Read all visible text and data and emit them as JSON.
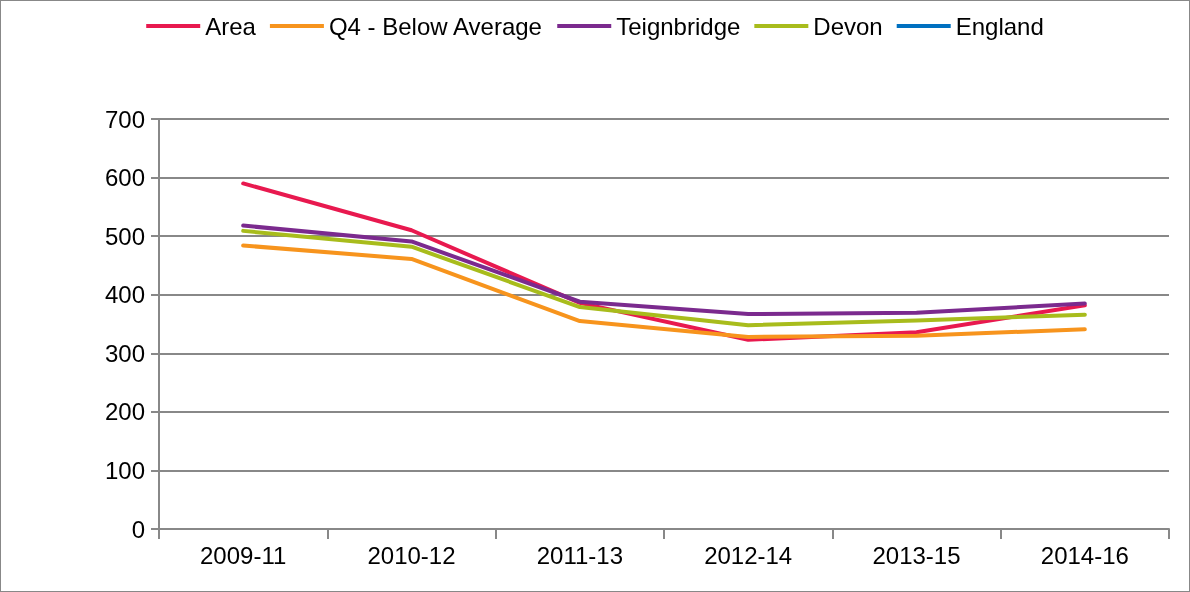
{
  "chart_data": {
    "type": "line",
    "categories": [
      "2009-11",
      "2010-12",
      "2011-13",
      "2012-14",
      "2013-15",
      "2014-16"
    ],
    "series": [
      {
        "name": "Area",
        "color": "#e8194f",
        "values": [
          590,
          510,
          386,
          323,
          336,
          382
        ]
      },
      {
        "name": "Q4 - Below Average",
        "color": "#f7941d",
        "values": [
          484,
          461,
          355,
          328,
          330,
          341
        ]
      },
      {
        "name": "Teignbridge",
        "color": "#7b2a8e",
        "values": [
          518,
          491,
          388,
          367,
          369,
          385
        ]
      },
      {
        "name": "Devon",
        "color": "#a8bc1c",
        "values": [
          509,
          482,
          379,
          348,
          356,
          366
        ]
      },
      {
        "name": "England",
        "color": "#0070c0",
        "values": [
          null,
          null,
          null,
          null,
          null,
          null
        ]
      }
    ],
    "ylim": [
      0,
      700
    ],
    "yticks": [
      0,
      100,
      200,
      300,
      400,
      500,
      600,
      700
    ],
    "grid": "y",
    "legend": "top",
    "marker": "none",
    "line_style": "solid"
  }
}
